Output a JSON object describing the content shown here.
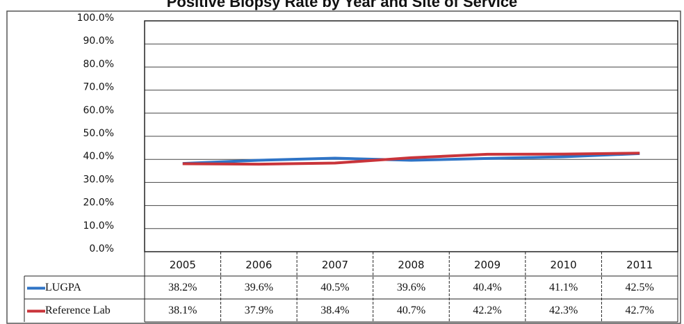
{
  "chart_data": {
    "type": "line",
    "title": "Positive Biopsy Rate by Year and Site of Service",
    "categories": [
      "2005",
      "2006",
      "2007",
      "2008",
      "2009",
      "2010",
      "2011"
    ],
    "series": [
      {
        "name": "LUGPA",
        "color": "#2f74c6",
        "values": [
          38.2,
          39.6,
          40.5,
          39.6,
          40.4,
          41.1,
          42.5
        ],
        "value_labels": [
          "38.2%",
          "39.6%",
          "40.5%",
          "39.6%",
          "40.4%",
          "41.1%",
          "42.5%"
        ]
      },
      {
        "name": "Reference Lab",
        "color": "#c9343a",
        "values": [
          38.1,
          37.9,
          38.4,
          40.7,
          42.2,
          42.3,
          42.7
        ],
        "value_labels": [
          "38.1%",
          "37.9%",
          "38.4%",
          "40.7%",
          "42.2%",
          "42.3%",
          "42.7%"
        ]
      }
    ],
    "ylim": [
      0,
      100
    ],
    "yticks": [
      {
        "value": 0,
        "label": "0.0%"
      },
      {
        "value": 10,
        "label": "10.0%"
      },
      {
        "value": 20,
        "label": "20.0%"
      },
      {
        "value": 30,
        "label": "30.0%"
      },
      {
        "value": 40,
        "label": "40.0%"
      },
      {
        "value": 50,
        "label": "50.0%"
      },
      {
        "value": 60,
        "label": "60.0%"
      },
      {
        "value": 70,
        "label": "70.0%"
      },
      {
        "value": 80,
        "label": "80.0%"
      },
      {
        "value": 90,
        "label": "90.0%"
      },
      {
        "value": 100,
        "label": "100.0%"
      }
    ],
    "grid": true
  }
}
